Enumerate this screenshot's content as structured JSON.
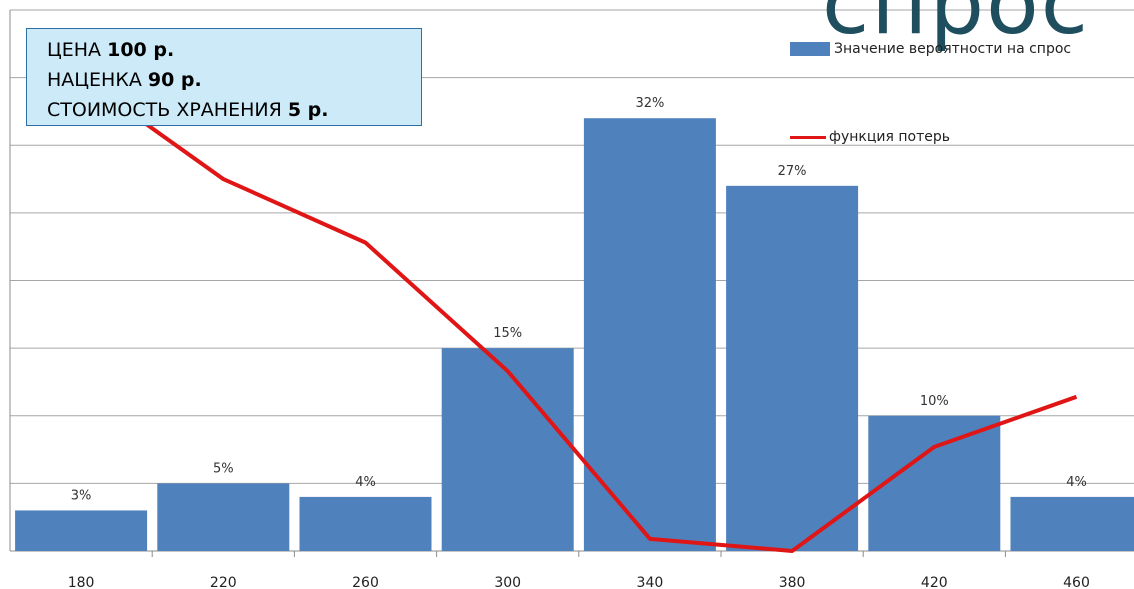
{
  "title_fragment": "спрос",
  "infobox": {
    "price_label": "ЦЕНА ",
    "price_value": "100 р.",
    "markup_label": "НАЦЕНКА ",
    "markup_value": "90 р.",
    "storage_label": "СТОИМОСТЬ ХРАНЕНИЯ ",
    "storage_value": "5 р."
  },
  "chart_data": {
    "type": "bar",
    "categories": [
      "180",
      "220",
      "260",
      "300",
      "340",
      "380",
      "420",
      "460"
    ],
    "series": [
      {
        "name": "Значение вероятности на спрос",
        "type": "bar",
        "values": [
          3,
          5,
          4,
          15,
          32,
          27,
          10,
          4
        ],
        "labels": [
          "3%",
          "5%",
          "4%",
          "15%",
          "32%",
          "27%",
          "10%",
          "4%"
        ],
        "color": "#4f81bd"
      },
      {
        "name": "функция потерь",
        "type": "line",
        "values": [
          35,
          27.5,
          22.8,
          13.3,
          0.9,
          0,
          7.7,
          11.4
        ],
        "color": "#e01515"
      }
    ],
    "ylim": [
      0,
      40
    ],
    "grid": true,
    "legend": "top-right"
  }
}
